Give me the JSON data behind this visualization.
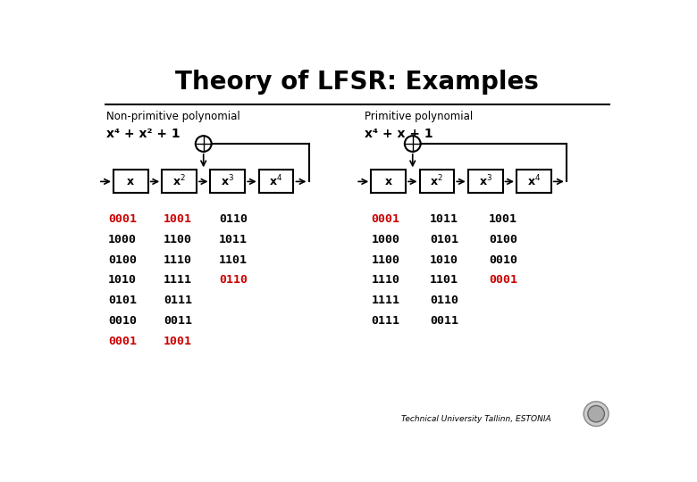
{
  "title": "Theory of LFSR: Examples",
  "bg_color": "#e8e8e8",
  "slide_bg": "#ffffff",
  "border_color": "#aaaaaa",
  "title_color": "#000000",
  "title_fontsize": 20,
  "left_label": "Non-primitive polynomial",
  "left_poly": "x⁴ + x² + 1",
  "right_label": "Primitive polynomial",
  "right_poly": "x⁴ + x + 1",
  "red_color": "#cc0000",
  "black_color": "#000000",
  "left_col1": [
    "0001",
    "1000",
    "0100",
    "1010",
    "0101",
    "0010",
    "0001"
  ],
  "left_col1_red": [
    true,
    false,
    false,
    false,
    false,
    false,
    true
  ],
  "left_col2": [
    "1001",
    "1100",
    "1110",
    "1111",
    "0111",
    "0011",
    "1001"
  ],
  "left_col2_red": [
    true,
    false,
    false,
    false,
    false,
    false,
    true
  ],
  "left_col3": [
    "0110",
    "1011",
    "1101",
    "0110"
  ],
  "left_col3_red": [
    false,
    false,
    false,
    true
  ],
  "right_col1": [
    "0001",
    "1000",
    "1100",
    "1110",
    "1111",
    "0111"
  ],
  "right_col1_red": [
    true,
    false,
    false,
    false,
    false,
    false
  ],
  "right_col2": [
    "1011",
    "0101",
    "1010",
    "1101",
    "0110",
    "0011"
  ],
  "right_col2_red": [
    false,
    false,
    false,
    false,
    false,
    false
  ],
  "right_col3": [
    "1001",
    "0100",
    "0010",
    "0001"
  ],
  "right_col3_red": [
    false,
    false,
    false,
    true
  ],
  "footer": "Technical University Tallinn, ESTONIA"
}
